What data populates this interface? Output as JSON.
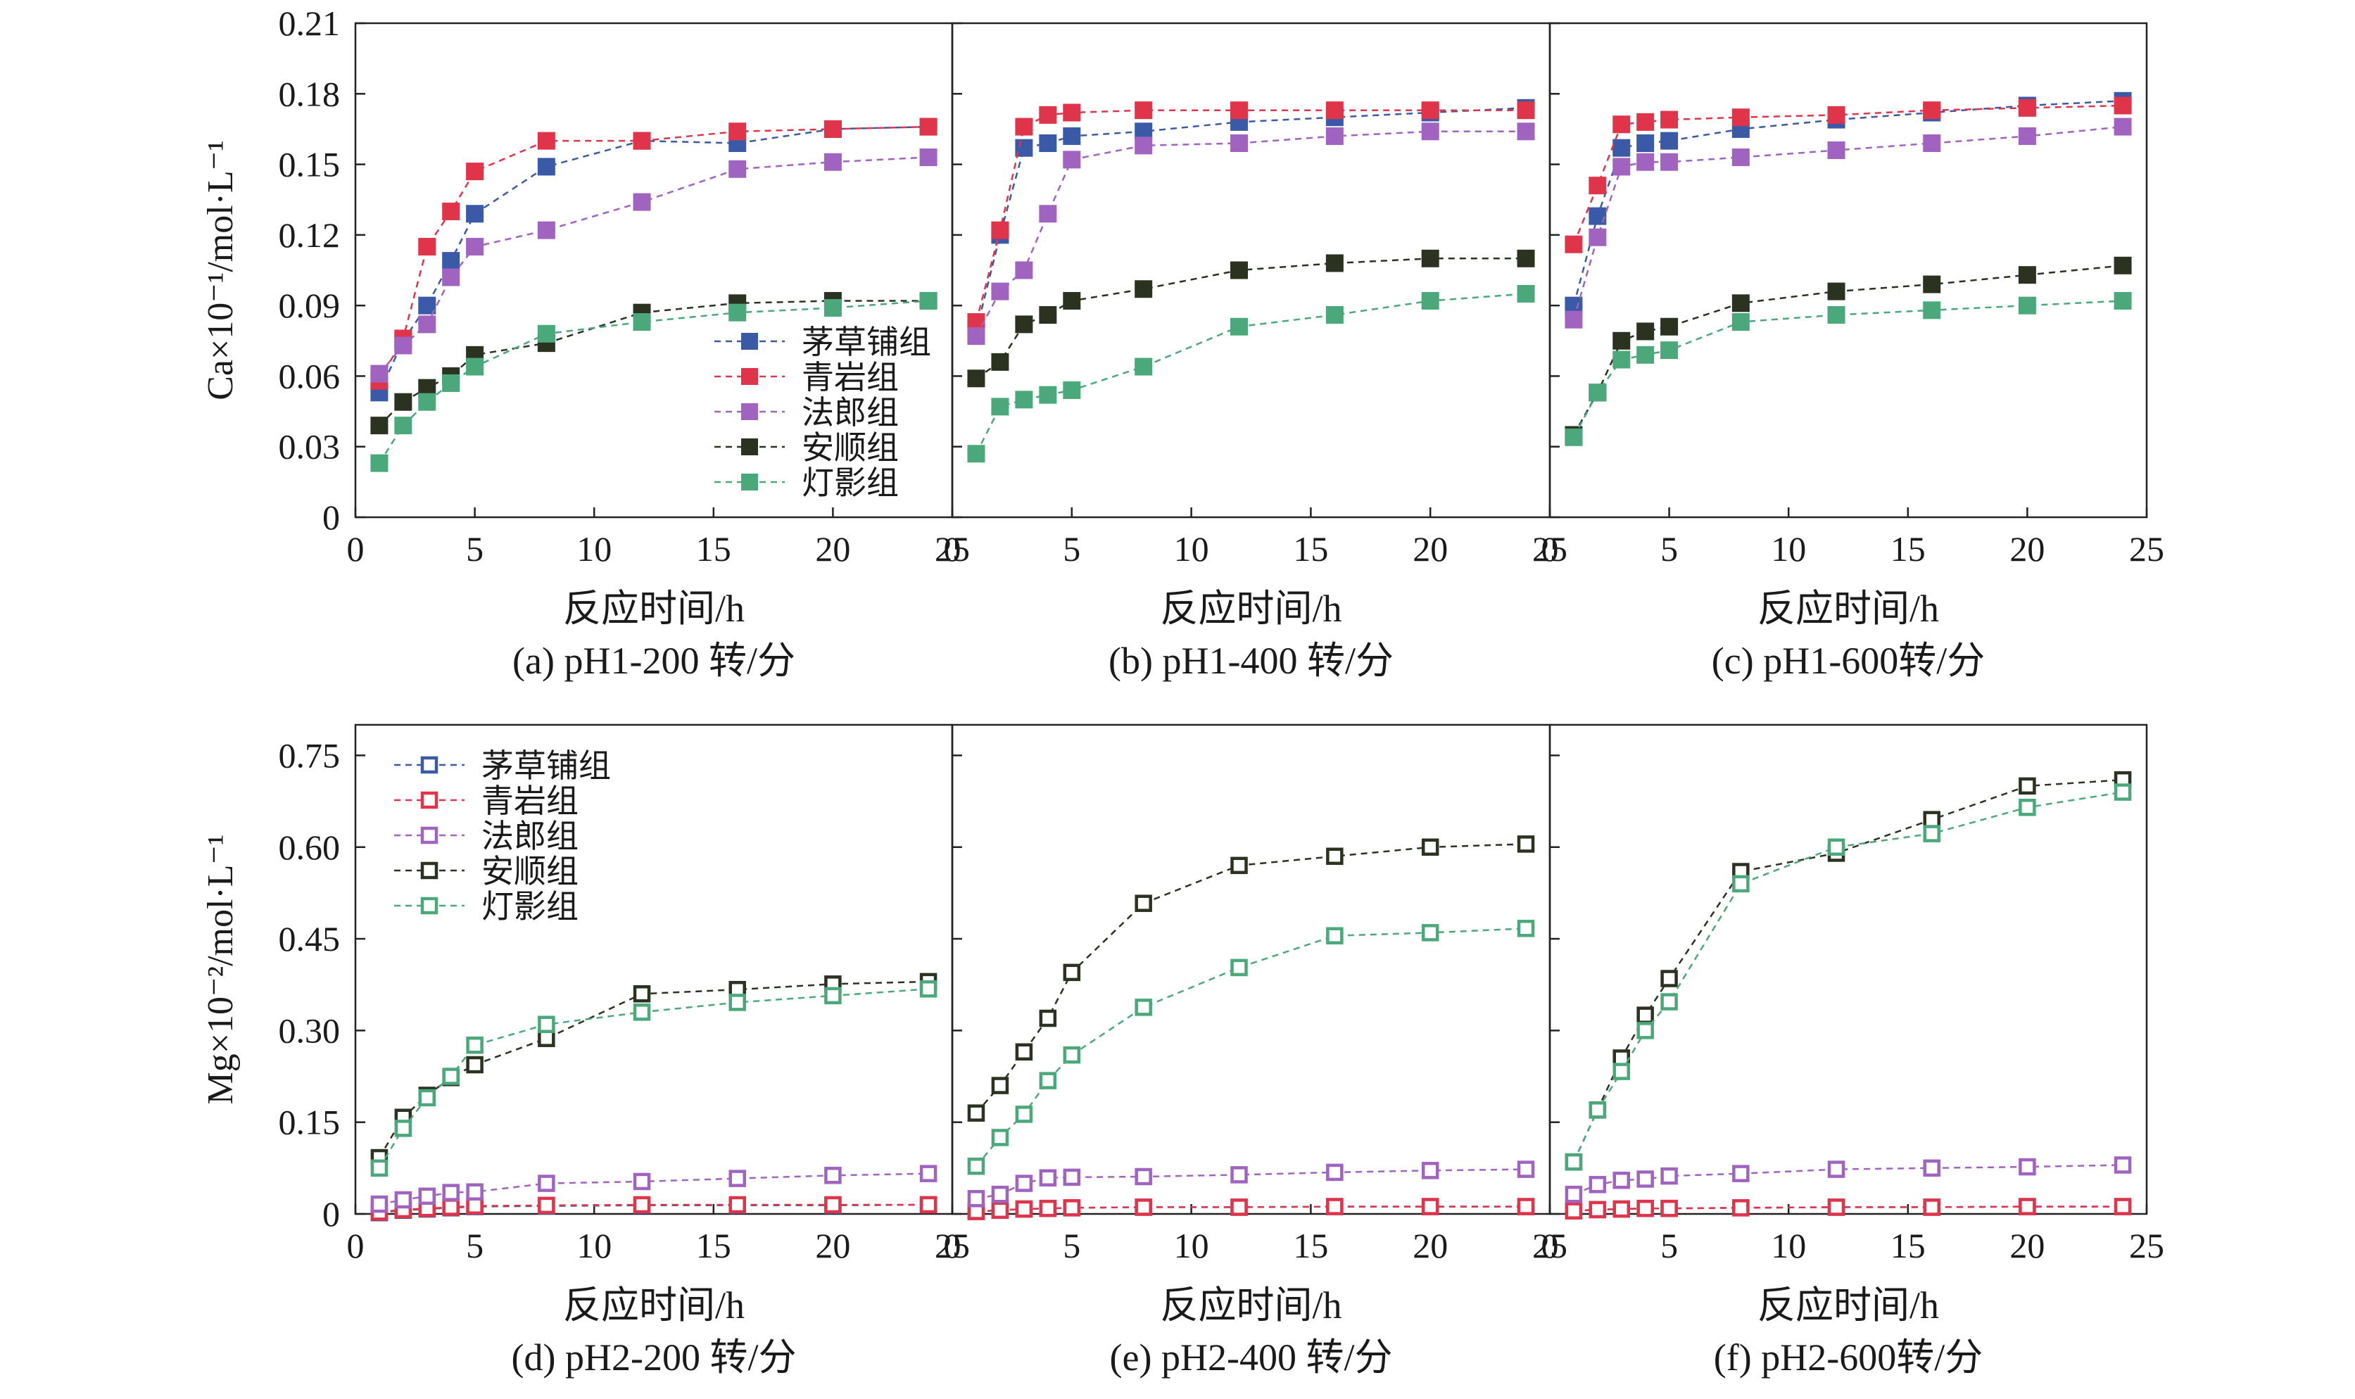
{
  "x_axis": {
    "label": "反应时间/h",
    "ticks": [
      "0",
      "5",
      "10",
      "15",
      "20",
      "25"
    ],
    "range": [
      0,
      25
    ]
  },
  "rows": [
    {
      "ylabel": "Ca×10⁻¹/mol·L⁻¹",
      "ylim": [
        0,
        0.21
      ],
      "yticks": [
        "0",
        "0.03",
        "0.06",
        "0.09",
        "0.12",
        "0.15",
        "0.18",
        "0.21"
      ],
      "marker": "filled"
    },
    {
      "ylabel": "Mg×10⁻²/mol·L⁻¹",
      "ylim": [
        0,
        0.8
      ],
      "yticks": [
        "0",
        "0.15",
        "0.30",
        "0.45",
        "0.60",
        "0.75"
      ],
      "marker": "hollow"
    }
  ],
  "legend": {
    "entries": [
      "茅草铺组",
      "青岩组",
      "法郎组",
      "安顺组",
      "灯影组"
    ],
    "colors": [
      "#3a5aa8",
      "#e0344a",
      "#a064c0",
      "#2b3320",
      "#4aa87a"
    ]
  },
  "chart_data": [
    {
      "type": "line",
      "panel": "a",
      "caption": "(a) pH1-200 转/分",
      "x": [
        1,
        2,
        3,
        4,
        5,
        8,
        12,
        16,
        20,
        24
      ],
      "xlabel": "反应时间/h",
      "ylabel": "Ca×10⁻¹/mol·L⁻¹",
      "xlim": [
        0,
        25
      ],
      "ylim": [
        0,
        0.21
      ],
      "series": [
        {
          "name": "茅草铺组",
          "values": [
            0.053,
            0.075,
            0.09,
            0.109,
            0.129,
            0.149,
            0.16,
            0.159,
            0.165,
            0.166
          ]
        },
        {
          "name": "青岩组",
          "values": [
            0.058,
            0.076,
            0.115,
            0.13,
            0.147,
            0.16,
            0.16,
            0.164,
            0.165,
            0.166
          ]
        },
        {
          "name": "法郎组",
          "values": [
            0.061,
            0.073,
            0.082,
            0.102,
            0.115,
            0.122,
            0.134,
            0.148,
            0.151,
            0.153
          ]
        },
        {
          "name": "安顺组",
          "values": [
            0.039,
            0.049,
            0.055,
            0.06,
            0.069,
            0.074,
            0.087,
            0.091,
            0.092,
            0.092
          ]
        },
        {
          "name": "灯影组",
          "values": [
            0.023,
            0.039,
            0.049,
            0.057,
            0.064,
            0.078,
            0.083,
            0.087,
            0.089,
            0.092
          ]
        }
      ]
    },
    {
      "type": "line",
      "panel": "b",
      "caption": "(b) pH1-400 转/分",
      "x": [
        1,
        2,
        3,
        4,
        5,
        8,
        12,
        16,
        20,
        24
      ],
      "xlabel": "反应时间/h",
      "ylabel": "Ca×10⁻¹/mol·L⁻¹",
      "xlim": [
        0,
        25
      ],
      "ylim": [
        0,
        0.21
      ],
      "series": [
        {
          "name": "茅草铺组",
          "values": [
            0.079,
            0.12,
            0.157,
            0.159,
            0.162,
            0.164,
            0.168,
            0.17,
            0.172,
            0.174
          ]
        },
        {
          "name": "青岩组",
          "values": [
            0.083,
            0.122,
            0.166,
            0.171,
            0.172,
            0.173,
            0.173,
            0.173,
            0.173,
            0.173
          ]
        },
        {
          "name": "法郎组",
          "values": [
            0.077,
            0.096,
            0.105,
            0.129,
            0.152,
            0.158,
            0.159,
            0.162,
            0.164,
            0.164
          ]
        },
        {
          "name": "安顺组",
          "values": [
            0.059,
            0.066,
            0.082,
            0.086,
            0.092,
            0.097,
            0.105,
            0.108,
            0.11,
            0.11
          ]
        },
        {
          "name": "灯影组",
          "values": [
            0.027,
            0.047,
            0.05,
            0.052,
            0.054,
            0.064,
            0.081,
            0.086,
            0.092,
            0.095
          ]
        }
      ]
    },
    {
      "type": "line",
      "panel": "c",
      "caption": "(c) pH1-600转/分",
      "x": [
        1,
        2,
        3,
        4,
        5,
        8,
        12,
        16,
        20,
        24
      ],
      "xlabel": "反应时间/h",
      "ylabel": "Ca×10⁻¹/mol·L⁻¹",
      "xlim": [
        0,
        25
      ],
      "ylim": [
        0,
        0.21
      ],
      "series": [
        {
          "name": "茅草铺组",
          "values": [
            0.09,
            0.128,
            0.157,
            0.159,
            0.16,
            0.165,
            0.169,
            0.172,
            0.175,
            0.177
          ]
        },
        {
          "name": "青岩组",
          "values": [
            0.116,
            0.141,
            0.167,
            0.168,
            0.169,
            0.17,
            0.171,
            0.173,
            0.174,
            0.175
          ]
        },
        {
          "name": "法郎组",
          "values": [
            0.084,
            0.119,
            0.149,
            0.151,
            0.151,
            0.153,
            0.156,
            0.159,
            0.162,
            0.166
          ]
        },
        {
          "name": "安顺组",
          "values": [
            0.035,
            0.053,
            0.075,
            0.079,
            0.081,
            0.091,
            0.096,
            0.099,
            0.103,
            0.107
          ]
        },
        {
          "name": "灯影组",
          "values": [
            0.034,
            0.053,
            0.067,
            0.069,
            0.071,
            0.083,
            0.086,
            0.088,
            0.09,
            0.092
          ]
        }
      ]
    },
    {
      "type": "line",
      "panel": "d",
      "caption": "(d) pH2-200 转/分",
      "x": [
        1,
        2,
        3,
        4,
        5,
        8,
        12,
        16,
        20,
        24
      ],
      "xlabel": "反应时间/h",
      "ylabel": "Mg×10⁻²/mol·L⁻¹",
      "xlim": [
        0,
        25
      ],
      "ylim": [
        0,
        0.8
      ],
      "series": [
        {
          "name": "茅草铺组",
          "values": [
            0.002,
            0.006,
            0.008,
            0.01,
            0.012,
            0.013,
            0.014,
            0.014,
            0.014,
            0.015
          ]
        },
        {
          "name": "青岩组",
          "values": [
            0.003,
            0.007,
            0.009,
            0.011,
            0.013,
            0.014,
            0.015,
            0.015,
            0.015,
            0.015
          ]
        },
        {
          "name": "法郎组",
          "values": [
            0.016,
            0.023,
            0.029,
            0.035,
            0.036,
            0.05,
            0.053,
            0.058,
            0.063,
            0.066
          ]
        },
        {
          "name": "安顺组",
          "values": [
            0.092,
            0.158,
            0.194,
            0.223,
            0.244,
            0.287,
            0.36,
            0.367,
            0.376,
            0.38
          ]
        },
        {
          "name": "灯影组",
          "values": [
            0.075,
            0.14,
            0.19,
            0.225,
            0.276,
            0.31,
            0.33,
            0.346,
            0.357,
            0.368
          ]
        }
      ]
    },
    {
      "type": "line",
      "panel": "e",
      "caption": "(e) pH2-400 转/分",
      "x": [
        1,
        2,
        3,
        4,
        5,
        8,
        12,
        16,
        20,
        24
      ],
      "xlabel": "反应时间/h",
      "ylabel": "Mg×10⁻²/mol·L⁻¹",
      "xlim": [
        0,
        25
      ],
      "ylim": [
        0,
        0.8
      ],
      "series": [
        {
          "name": "茅草铺组",
          "values": [
            0.004,
            0.006,
            0.008,
            0.009,
            0.01,
            0.011,
            0.011,
            0.012,
            0.012,
            0.012
          ]
        },
        {
          "name": "青岩组",
          "values": [
            0.004,
            0.006,
            0.008,
            0.009,
            0.01,
            0.011,
            0.011,
            0.012,
            0.012,
            0.012
          ]
        },
        {
          "name": "法郎组",
          "values": [
            0.025,
            0.032,
            0.05,
            0.059,
            0.06,
            0.061,
            0.064,
            0.068,
            0.071,
            0.073
          ]
        },
        {
          "name": "安顺组",
          "values": [
            0.165,
            0.21,
            0.265,
            0.32,
            0.395,
            0.508,
            0.57,
            0.585,
            0.6,
            0.605
          ]
        },
        {
          "name": "灯影组",
          "values": [
            0.078,
            0.125,
            0.163,
            0.218,
            0.26,
            0.338,
            0.403,
            0.455,
            0.46,
            0.467
          ]
        }
      ]
    },
    {
      "type": "line",
      "panel": "f",
      "caption": "(f) pH2-600转/分",
      "x": [
        1,
        2,
        3,
        4,
        5,
        8,
        12,
        16,
        20,
        24
      ],
      "xlabel": "反应时间/h",
      "ylabel": "Mg×10⁻²/mol·L⁻¹",
      "xlim": [
        0,
        25
      ],
      "ylim": [
        0,
        0.8
      ],
      "series": [
        {
          "name": "茅草铺组",
          "values": [
            0.005,
            0.007,
            0.008,
            0.009,
            0.009,
            0.01,
            0.011,
            0.011,
            0.012,
            0.012
          ]
        },
        {
          "name": "青岩组",
          "values": [
            0.005,
            0.007,
            0.008,
            0.009,
            0.009,
            0.01,
            0.011,
            0.011,
            0.012,
            0.012
          ]
        },
        {
          "name": "法郎组",
          "values": [
            0.032,
            0.048,
            0.055,
            0.057,
            0.062,
            0.066,
            0.073,
            0.075,
            0.077,
            0.08
          ]
        },
        {
          "name": "安顺组",
          "values": [
            0.085,
            0.17,
            0.255,
            0.325,
            0.385,
            0.56,
            0.59,
            0.645,
            0.7,
            0.71
          ]
        },
        {
          "name": "灯影组",
          "values": [
            0.085,
            0.17,
            0.233,
            0.3,
            0.347,
            0.54,
            0.6,
            0.622,
            0.665,
            0.69
          ]
        }
      ]
    }
  ]
}
